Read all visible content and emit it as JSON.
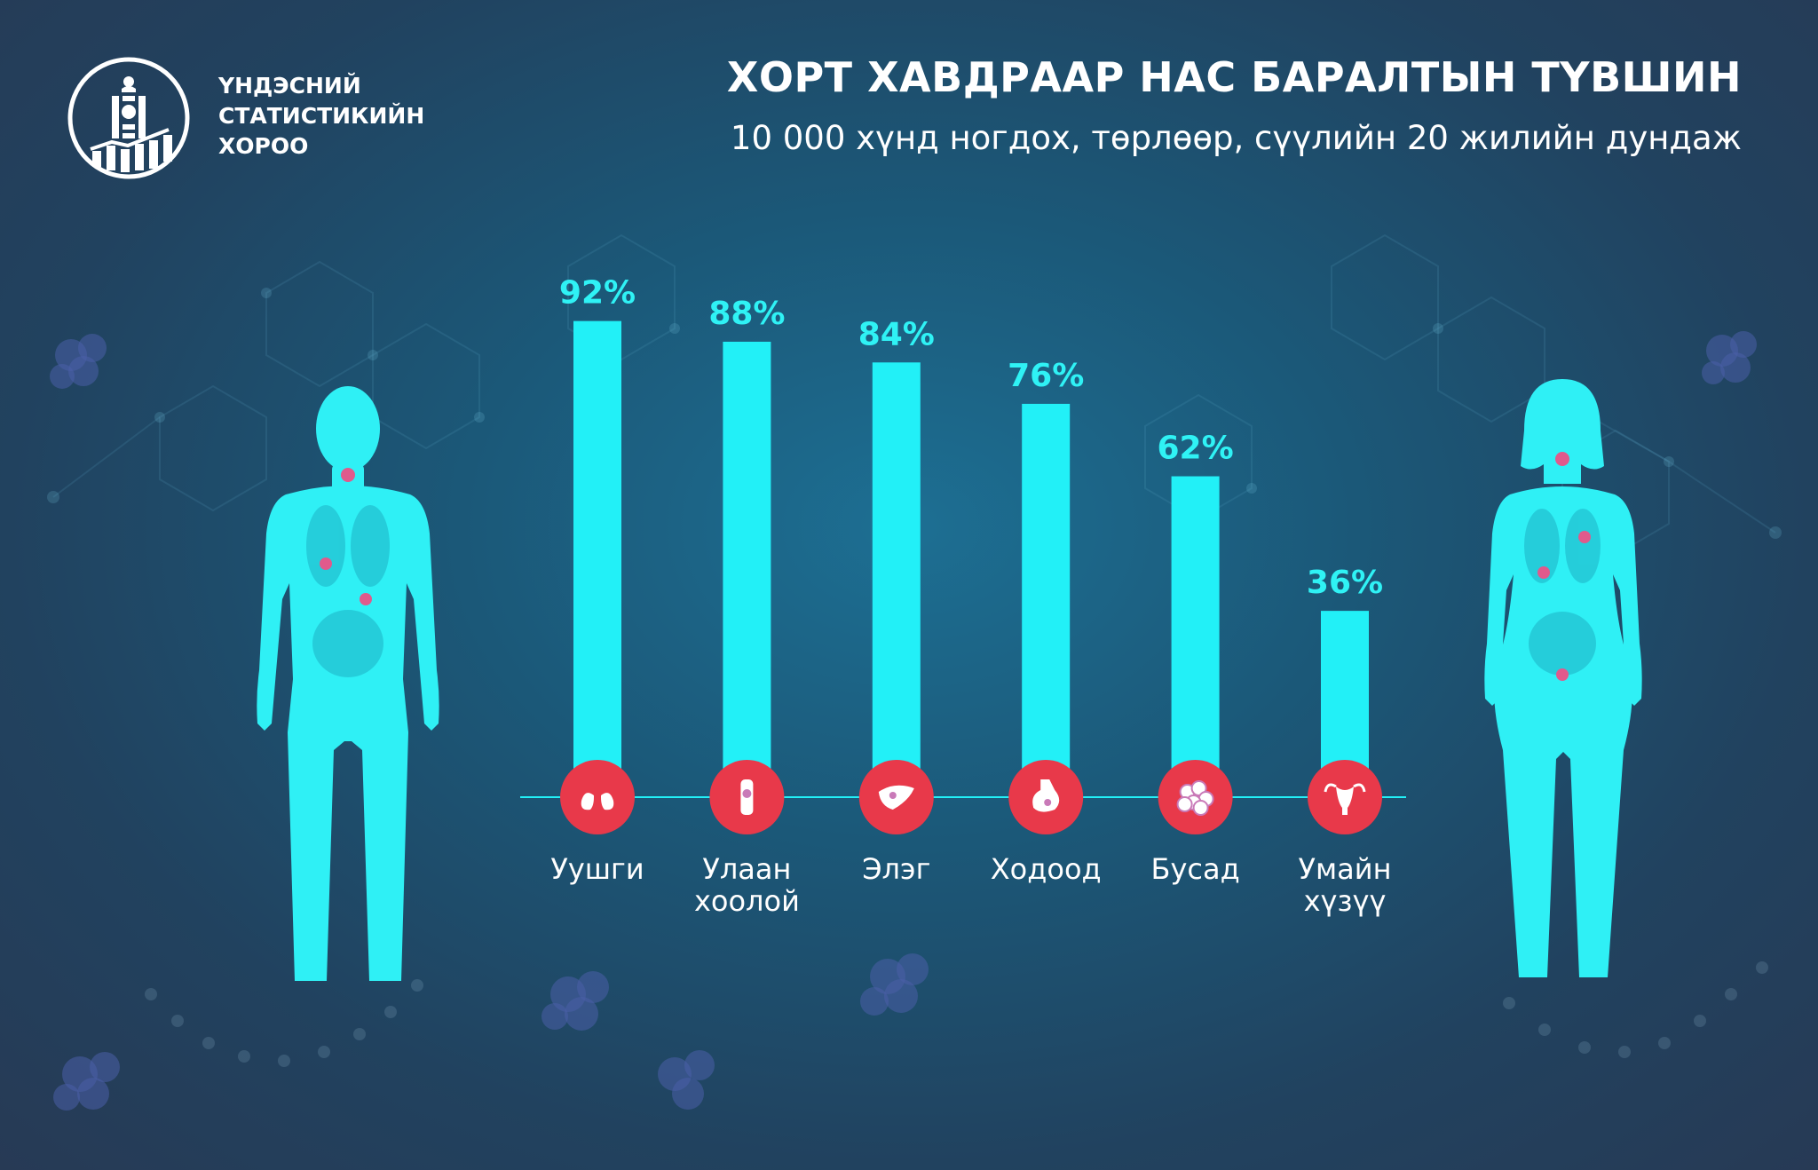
{
  "header": {
    "org_name_lines": [
      "ҮНДЭСНИЙ",
      "СТАТИСТИКИЙН",
      "ХОРОО"
    ],
    "title": "ХОРТ ХАВДРААР НАС БАРАЛТЫН ТҮВШИН",
    "subtitle": "10 000 хүнд ногдох, төрлөөр, сүүлийн 20 жилийн дундаж"
  },
  "colors": {
    "bar": "#22f0f7",
    "value_label": "#2ff2f5",
    "icon_circle": "#e8394a",
    "category_text": "#ffffff",
    "body_figure": "#2ff0f5"
  },
  "icons": {
    "organization": "mongolian-soyombo-emblem-with-rising-bars",
    "male": "male-body-silhouette",
    "female": "female-body-silhouette",
    "categories": [
      "lungs-icon",
      "esophagus-icon",
      "liver-icon",
      "stomach-icon",
      "tumor-cells-icon",
      "uterus-icon"
    ]
  },
  "chart_data": {
    "type": "bar",
    "title": "ХОРТ ХАВДРААР НАС БАРАЛТЫН ТҮВШИН",
    "subtitle": "10 000 хүнд ногдох, төрлөөр, сүүлийн 20 жилийн дундаж",
    "categories": [
      [
        "Уушги"
      ],
      [
        "Улаан",
        "хоолой"
      ],
      [
        "Элэг"
      ],
      [
        "Ходоод"
      ],
      [
        "Бусад"
      ],
      [
        "Умайн",
        "хүзүү"
      ]
    ],
    "values": [
      92,
      88,
      84,
      76,
      62,
      36
    ],
    "value_labels": [
      "92%",
      "88%",
      "84%",
      "76%",
      "62%",
      "36%"
    ],
    "unit": "%",
    "ylim": [
      0,
      100
    ],
    "grid": false,
    "legend": "none"
  }
}
